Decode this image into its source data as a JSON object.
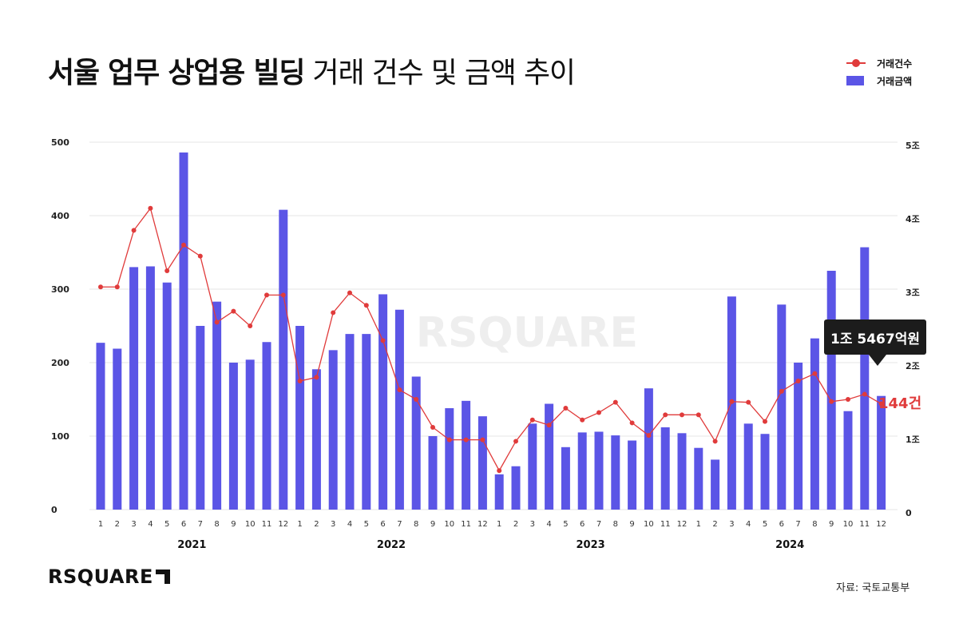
{
  "header": {
    "title_bold": "서울 업무 상업용 빌딩",
    "title_light": "거래 건수 및 금액 추이"
  },
  "legend": {
    "count_label": "거래건수",
    "amount_label": "거래금액"
  },
  "annotations": {
    "last_amount": "1조 5467억원",
    "last_count": "144건"
  },
  "footer": {
    "brand": "RSQUARE",
    "source": "자료: 국토교통부"
  },
  "colors": {
    "bars": "#5b55e6",
    "line": "#e03b3b",
    "grid": "#e4e4e4",
    "watermark": "#eeeeee"
  },
  "chart_data": {
    "type": "bar",
    "months": [
      "1",
      "2",
      "3",
      "4",
      "5",
      "6",
      "7",
      "8",
      "9",
      "10",
      "11",
      "12",
      "1",
      "2",
      "3",
      "4",
      "5",
      "6",
      "7",
      "8",
      "9",
      "10",
      "11",
      "12",
      "1",
      "2",
      "3",
      "4",
      "5",
      "6",
      "7",
      "8",
      "9",
      "10",
      "11",
      "12",
      "1",
      "2",
      "3",
      "4",
      "5",
      "6",
      "7",
      "8",
      "9",
      "10",
      "11",
      "12"
    ],
    "years": [
      "2021",
      "2022",
      "2023",
      "2024"
    ],
    "left_axis": {
      "ticks": [
        "0",
        "100",
        "200",
        "300",
        "400",
        "500"
      ],
      "range": [
        0,
        500
      ]
    },
    "right_axis": {
      "ticks": [
        "0",
        "1조",
        "2조",
        "3조",
        "4조",
        "5조"
      ],
      "range": [
        0,
        5
      ]
    },
    "series": [
      {
        "name": "거래금액",
        "kind": "bar",
        "axis": "right",
        "unit": "조원",
        "values": [
          2.27,
          2.19,
          3.3,
          3.31,
          3.09,
          4.86,
          2.5,
          2.83,
          2.0,
          2.04,
          2.28,
          4.08,
          2.5,
          1.91,
          2.17,
          2.39,
          2.39,
          2.93,
          2.72,
          1.81,
          1.0,
          1.38,
          1.48,
          1.27,
          0.48,
          0.59,
          1.17,
          1.44,
          0.85,
          1.05,
          1.06,
          1.01,
          0.94,
          1.65,
          1.12,
          1.04,
          0.84,
          0.68,
          2.9,
          1.17,
          1.03,
          2.79,
          2.0,
          2.33,
          3.25,
          1.34,
          3.57,
          1.5467
        ]
      },
      {
        "name": "거래건수",
        "kind": "line",
        "axis": "left",
        "unit": "건",
        "values": [
          303,
          303,
          380,
          410,
          325,
          360,
          345,
          255,
          270,
          250,
          292,
          292,
          175,
          180,
          268,
          295,
          278,
          230,
          163,
          150,
          112,
          95,
          95,
          95,
          53,
          93,
          122,
          115,
          138,
          122,
          132,
          146,
          118,
          101,
          129,
          129,
          129,
          93,
          147,
          146,
          120,
          161,
          175,
          185,
          147,
          150,
          157,
          144
        ]
      }
    ]
  }
}
